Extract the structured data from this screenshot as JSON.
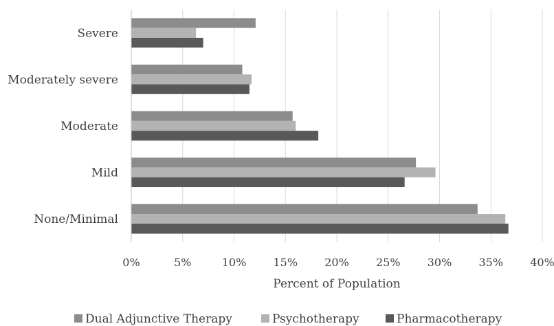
{
  "chart_data": {
    "type": "bar",
    "orientation": "horizontal",
    "categories": [
      "None/Minimal",
      "Mild",
      "Moderate",
      "Moderately severe",
      "Severe"
    ],
    "series": [
      {
        "name": "Dual Adjunctive Therapy",
        "color": "#8c8c8c",
        "values": [
          33.7,
          27.7,
          15.7,
          10.8,
          12.1
        ]
      },
      {
        "name": "Psychotherapy",
        "color": "#b3b3b3",
        "values": [
          36.4,
          29.6,
          16.0,
          11.7,
          6.3
        ]
      },
      {
        "name": "Pharmacotherapy",
        "color": "#595959",
        "values": [
          36.7,
          26.6,
          18.2,
          11.5,
          7.0
        ]
      }
    ],
    "xlabel": "Percent of Population",
    "ylabel": "",
    "xlim": [
      0,
      40
    ],
    "x_ticks": [
      0,
      5,
      10,
      15,
      20,
      25,
      30,
      35,
      40
    ],
    "x_tick_labels": [
      "0%",
      "5%",
      "10%",
      "15%",
      "20%",
      "25%",
      "30%",
      "35%",
      "40%"
    ],
    "grid": true,
    "legend_position": "bottom"
  }
}
